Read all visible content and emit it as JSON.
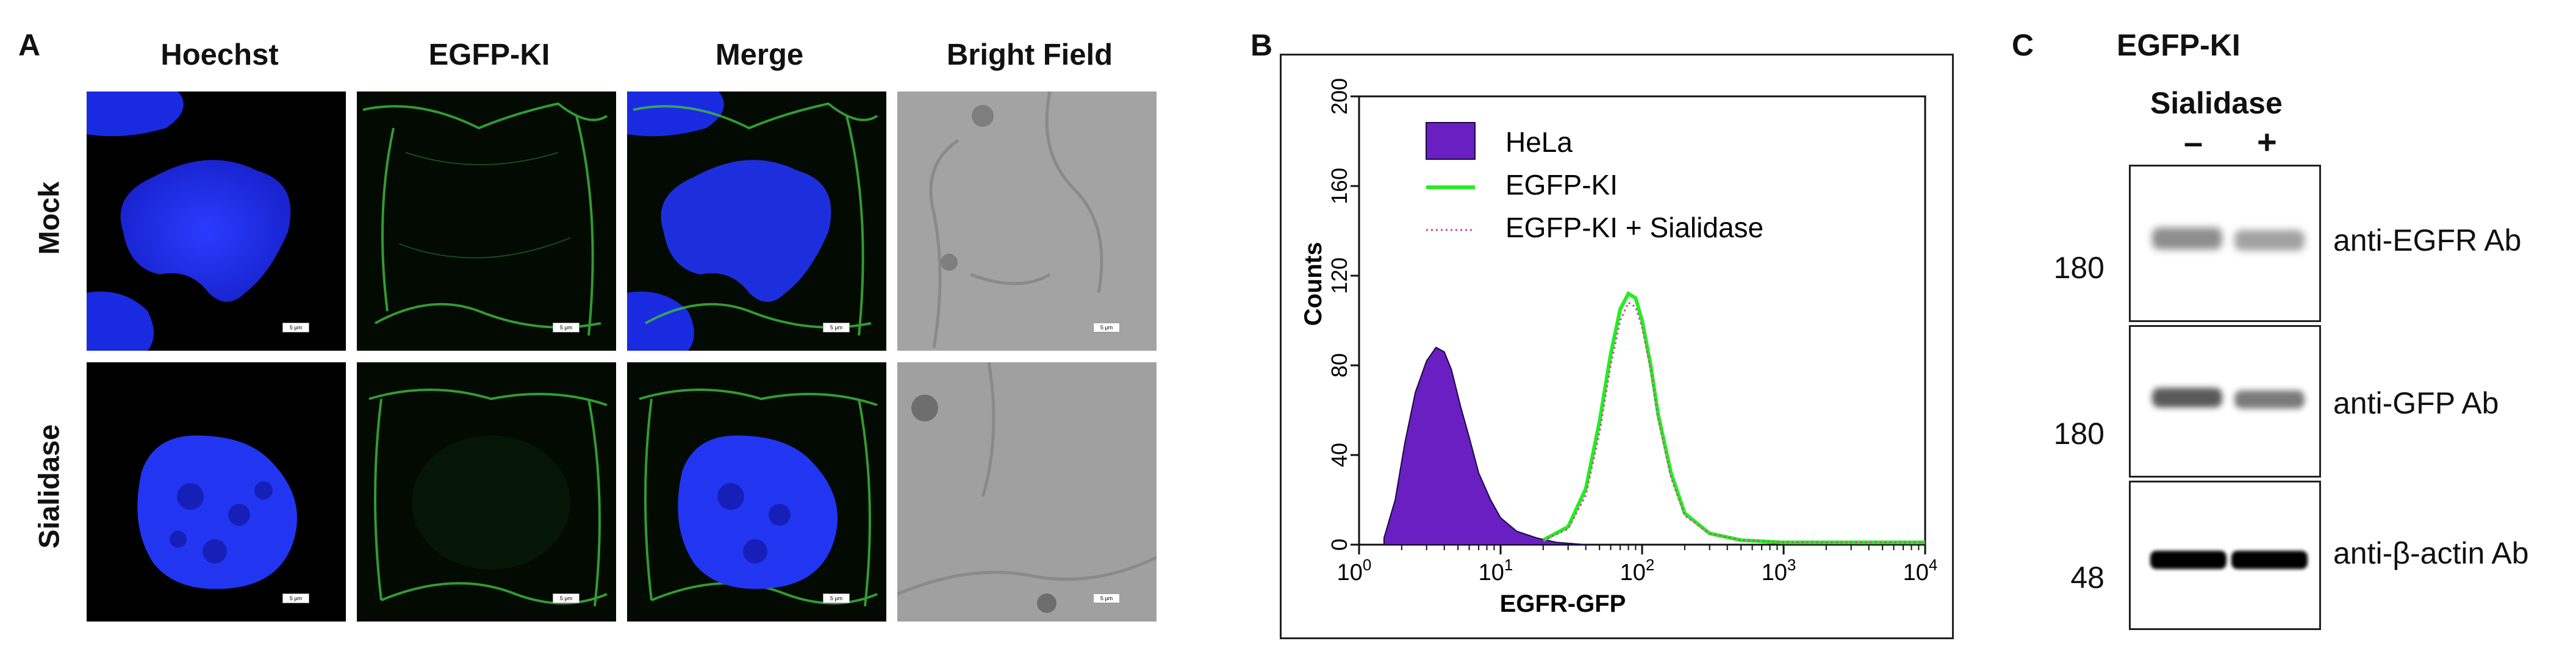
{
  "panelA": {
    "letter": "A",
    "columns": [
      "Hoechst",
      "EGFP-KI",
      "Merge",
      "Bright Field"
    ],
    "rows": [
      "Mock",
      "Sialidase"
    ],
    "scale_bar_label": "5 μm"
  },
  "panelB": {
    "letter": "B",
    "legend": [
      "HeLa",
      "EGFP-KI",
      "EGFP-KI + Sialidase"
    ]
  },
  "chart_data": {
    "type": "area",
    "xlabel": "EGFR-GFP",
    "ylabel": "Counts",
    "xscale": "log",
    "xlim": [
      1,
      10000
    ],
    "ylim": [
      0,
      200
    ],
    "xticks": [
      1,
      10,
      100,
      1000,
      10000
    ],
    "xtick_labels": [
      [
        "10",
        "0"
      ],
      [
        "10",
        "1"
      ],
      [
        "10",
        "2"
      ],
      [
        "10",
        "3"
      ],
      [
        "10",
        "4"
      ]
    ],
    "yticks": [
      0,
      40,
      80,
      120,
      160,
      200
    ],
    "legend_position": "upper-left",
    "colors": {
      "HeLa": "#6a1fc2",
      "EGFP-KI": "#22ee22",
      "EGFP-KI + Sialidase": "#d9409a"
    },
    "series": [
      {
        "name": "HeLa",
        "style": "filled",
        "x": [
          1.5,
          1.8,
          2.1,
          2.5,
          3.0,
          3.5,
          4.0,
          4.5,
          5.2,
          6.0,
          7.0,
          8.5,
          10,
          13,
          18,
          25,
          40
        ],
        "y": [
          3,
          20,
          45,
          68,
          82,
          88,
          86,
          78,
          62,
          48,
          32,
          20,
          12,
          6,
          3,
          1,
          0
        ]
      },
      {
        "name": "EGFP-KI",
        "style": "solid",
        "x": [
          20,
          30,
          40,
          50,
          60,
          70,
          80,
          90,
          100,
          115,
          130,
          160,
          200,
          300,
          500,
          1000,
          3000,
          10000
        ],
        "y": [
          2,
          8,
          25,
          55,
          85,
          105,
          112,
          110,
          100,
          80,
          58,
          32,
          14,
          5,
          2,
          1,
          1,
          1
        ]
      },
      {
        "name": "EGFP-KI + Sialidase",
        "style": "dotted",
        "x": [
          20,
          30,
          40,
          50,
          60,
          70,
          80,
          90,
          100,
          115,
          130,
          160,
          200,
          300,
          500,
          1000,
          3000,
          10000
        ],
        "y": [
          2,
          7,
          22,
          50,
          80,
          100,
          108,
          106,
          97,
          78,
          56,
          30,
          13,
          5,
          2,
          1,
          1,
          1
        ]
      }
    ]
  },
  "panelC": {
    "letter": "C",
    "title": "EGFP-KI",
    "treatment": "Sialidase",
    "lanes": [
      "–",
      "+"
    ],
    "blots": [
      {
        "mw": "180",
        "antibody": "anti-EGFR Ab",
        "band_intensity": [
          0.55,
          0.45
        ]
      },
      {
        "mw": "180",
        "antibody": "anti-GFP Ab",
        "band_intensity": [
          0.75,
          0.6
        ]
      },
      {
        "mw": "48",
        "antibody": "anti-β-actin Ab",
        "band_intensity": [
          1.0,
          1.0
        ]
      }
    ]
  }
}
